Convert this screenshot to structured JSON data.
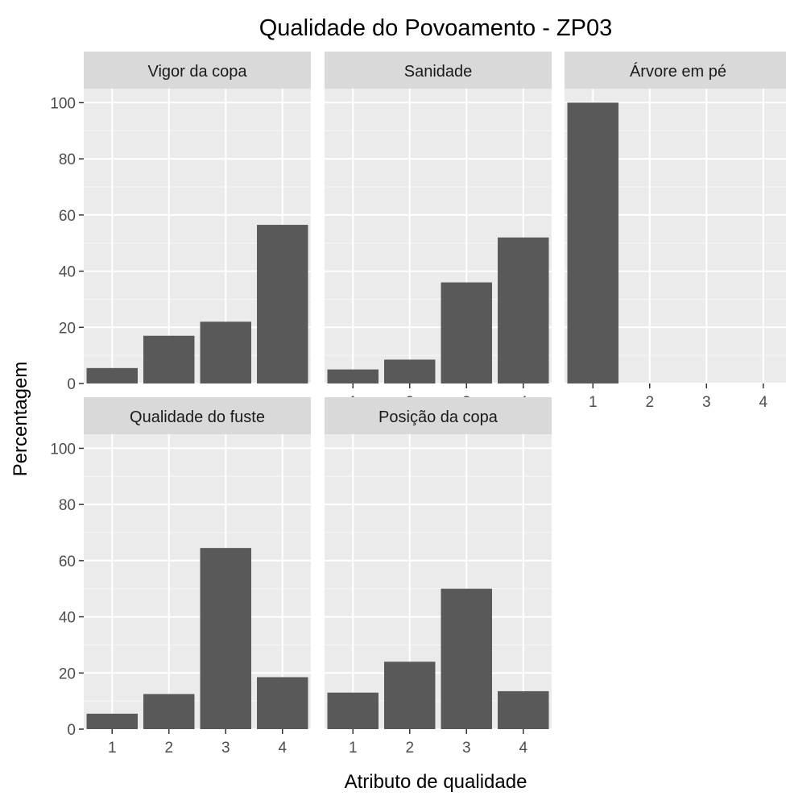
{
  "chart_data": {
    "type": "bar",
    "title": "Qualidade do Povoamento - ZP03",
    "xlabel": "Atributo de qualidade",
    "ylabel": "Percentagem",
    "categories": [
      "1",
      "2",
      "3",
      "4"
    ],
    "ylim": [
      0,
      105
    ],
    "yticks": [
      "0",
      "20",
      "40",
      "60",
      "80",
      "100"
    ],
    "grid": true,
    "bar_color": "#595959",
    "panel_bg": "#ebebeb",
    "strip_bg": "#d9d9d9",
    "panels": [
      {
        "name": "Vigor da copa",
        "values": [
          5.5,
          17,
          22,
          56.5
        ]
      },
      {
        "name": "Sanidade",
        "values": [
          5,
          8.5,
          36,
          52
        ]
      },
      {
        "name": "Árvore em pé",
        "values": [
          100,
          0,
          0,
          0
        ]
      },
      {
        "name": "Qualidade do fuste",
        "values": [
          5.5,
          12.5,
          64.5,
          18.5
        ]
      },
      {
        "name": "Posição da copa",
        "values": [
          13,
          24,
          50,
          13.5
        ]
      }
    ]
  }
}
